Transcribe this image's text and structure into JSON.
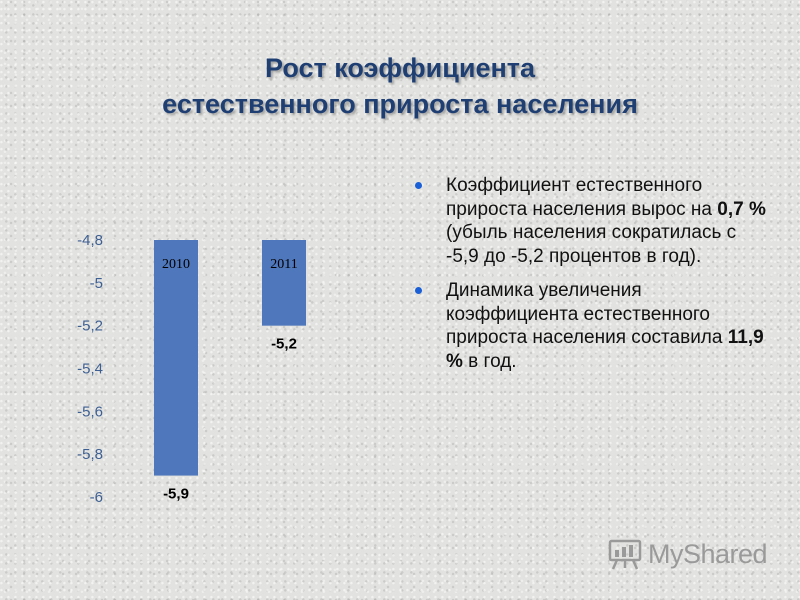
{
  "title": {
    "line1": "Рост коэффициента",
    "line2": "естественного прироста населения"
  },
  "chart_data": {
    "type": "bar",
    "categories": [
      "2010",
      "2011"
    ],
    "values": [
      -5.9,
      -5.2
    ],
    "value_labels": [
      "-5,9",
      "-5,2"
    ],
    "y_ticks": [
      "-4,8",
      "-5",
      "-5,2",
      "-5,4",
      "-5,6",
      "-5,8",
      "-6"
    ],
    "ylim": [
      -6,
      -4.8
    ],
    "title": "",
    "xlabel": "",
    "ylabel": "",
    "grid": false,
    "bar_color": "#4f77bb"
  },
  "bullets": [
    {
      "pre": "Коэффициент естественного прироста населения вырос на ",
      "bold": "0,7 %",
      "post": " (убыль населения сократилась с -5,9 до -5,2 процентов в год)."
    },
    {
      "pre": "Динамика увеличения коэффициента естественного прироста населения составила ",
      "bold": "11,9 %",
      "post": " в год."
    }
  ],
  "watermark": {
    "text": "MyShared",
    "icon": "presentation-board-icon",
    "color": "#9a9a9a"
  },
  "colors": {
    "title": "#1f3f73",
    "axis_text": "#3d5f92",
    "bullet": "#1a5fd6"
  }
}
